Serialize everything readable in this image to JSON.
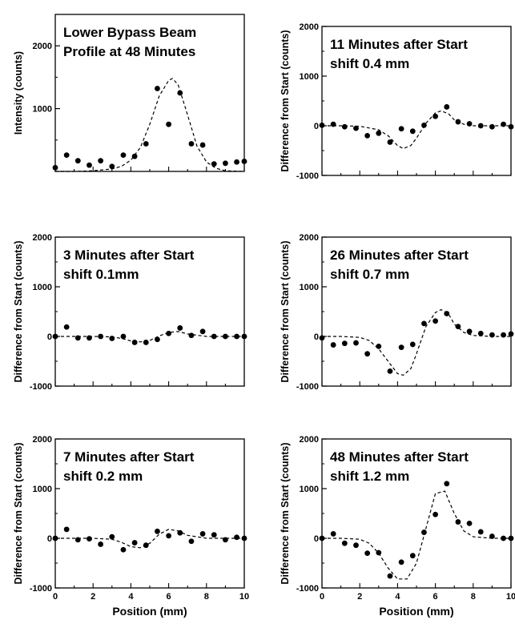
{
  "chart_data": [
    {
      "type": "scatter",
      "title": "Lower Bypass Beam",
      "subtitle": "Profile at 48 Minutes",
      "ylabel": "Intensity (counts)",
      "xlabel": "",
      "xlim": [
        0,
        10
      ],
      "ylim": [
        0,
        2500
      ],
      "yticks": [
        1000,
        2000
      ],
      "xticks": [],
      "x": [
        0,
        0.6,
        1.2,
        1.8,
        2.4,
        3.0,
        3.6,
        4.2,
        4.8,
        5.4,
        6.0,
        6.6,
        7.2,
        7.8,
        8.4,
        9.0,
        9.6,
        10.0
      ],
      "y": [
        60,
        260,
        170,
        100,
        170,
        80,
        260,
        240,
        440,
        1320,
        750,
        1250,
        440,
        420,
        120,
        130,
        150,
        160
      ],
      "fit": {
        "style": "dashed",
        "x": [
          0,
          1,
          2,
          3,
          3.5,
          4,
          4.5,
          5,
          5.5,
          6,
          6.2,
          6.5,
          7,
          7.5,
          8,
          8.5,
          9,
          10
        ],
        "y": [
          0,
          0,
          10,
          40,
          80,
          180,
          380,
          750,
          1200,
          1450,
          1480,
          1380,
          900,
          400,
          150,
          50,
          10,
          0
        ]
      }
    },
    {
      "type": "scatter",
      "title": "11 Minutes after Start",
      "subtitle": "shift 0.4 mm",
      "ylabel": "Difference from Start (counts)",
      "xlabel": "",
      "xlim": [
        0,
        10
      ],
      "ylim": [
        -1000,
        2000
      ],
      "yticks": [
        -1000,
        0,
        1000,
        2000
      ],
      "xticks": [],
      "x": [
        0,
        0.6,
        1.2,
        1.8,
        2.4,
        3.0,
        3.6,
        4.2,
        4.8,
        5.4,
        6.0,
        6.6,
        7.2,
        7.8,
        8.4,
        9.0,
        9.6,
        10.0
      ],
      "y": [
        10,
        30,
        -20,
        -50,
        -200,
        -150,
        -330,
        -60,
        -110,
        10,
        190,
        380,
        80,
        40,
        0,
        -20,
        30,
        -20
      ],
      "fit": {
        "style": "dashed",
        "x": [
          0,
          1,
          2,
          3,
          3.5,
          4,
          4.3,
          4.7,
          5,
          5.5,
          6,
          6.3,
          6.7,
          7,
          7.5,
          8,
          9,
          10
        ],
        "y": [
          0,
          0,
          -10,
          -80,
          -200,
          -400,
          -460,
          -400,
          -250,
          50,
          260,
          300,
          240,
          120,
          30,
          0,
          0,
          0
        ]
      }
    },
    {
      "type": "scatter",
      "title": "3 Minutes after Start",
      "subtitle": "shift 0.1mm",
      "ylabel": "Difference from Start (counts)",
      "xlabel": "",
      "xlim": [
        0,
        10
      ],
      "ylim": [
        -1000,
        2000
      ],
      "yticks": [
        -1000,
        0,
        1000,
        2000
      ],
      "xticks": [],
      "x": [
        0,
        0.6,
        1.2,
        1.8,
        2.4,
        3.0,
        3.6,
        4.2,
        4.8,
        5.4,
        6.0,
        6.6,
        7.2,
        7.8,
        8.4,
        9.0,
        9.6,
        10.0
      ],
      "y": [
        0,
        190,
        -30,
        -30,
        0,
        -40,
        0,
        -120,
        -120,
        -60,
        60,
        170,
        20,
        100,
        0,
        0,
        0,
        0
      ],
      "fit": {
        "style": "dashed",
        "x": [
          0,
          2,
          3,
          3.5,
          4,
          4.5,
          5,
          5.5,
          6,
          6.5,
          7,
          8,
          10
        ],
        "y": [
          0,
          0,
          -10,
          -40,
          -90,
          -110,
          -80,
          10,
          80,
          100,
          50,
          0,
          0
        ]
      }
    },
    {
      "type": "scatter",
      "title": "26 Minutes after Start",
      "subtitle": "shift 0.7 mm",
      "ylabel": "Difference from Start (counts)",
      "xlabel": "",
      "xlim": [
        0,
        10
      ],
      "ylim": [
        -1000,
        2000
      ],
      "yticks": [
        -1000,
        0,
        1000,
        2000
      ],
      "xticks": [],
      "x": [
        0,
        0.6,
        1.2,
        1.8,
        2.4,
        3.0,
        3.6,
        4.2,
        4.8,
        5.4,
        6.0,
        6.6,
        7.2,
        7.8,
        8.4,
        9.0,
        9.6,
        10.0
      ],
      "y": [
        -30,
        -170,
        -140,
        -130,
        -350,
        -200,
        -700,
        -220,
        -160,
        260,
        310,
        460,
        200,
        100,
        60,
        30,
        30,
        50
      ],
      "fit": {
        "style": "dashed",
        "x": [
          0,
          1,
          2,
          2.5,
          3,
          3.5,
          4,
          4.3,
          4.7,
          5,
          5.5,
          6,
          6.3,
          6.7,
          7,
          7.5,
          8,
          9,
          10
        ],
        "y": [
          0,
          0,
          -20,
          -80,
          -250,
          -500,
          -750,
          -780,
          -650,
          -350,
          200,
          480,
          540,
          450,
          250,
          80,
          20,
          0,
          0
        ]
      }
    },
    {
      "type": "scatter",
      "title": "7 Minutes after Start",
      "subtitle": "shift 0.2 mm",
      "ylabel": "Difference from Start (counts)",
      "xlabel": "Position (mm)",
      "xlim": [
        0,
        10
      ],
      "ylim": [
        -1000,
        2000
      ],
      "yticks": [
        -1000,
        0,
        1000,
        2000
      ],
      "xticks": [
        0,
        2,
        4,
        6,
        8,
        10
      ],
      "x": [
        0,
        0.6,
        1.2,
        1.8,
        2.4,
        3.0,
        3.6,
        4.2,
        4.8,
        5.4,
        6.0,
        6.6,
        7.2,
        7.8,
        8.4,
        9.0,
        9.6,
        10.0
      ],
      "y": [
        0,
        180,
        -30,
        -10,
        -120,
        30,
        -230,
        -90,
        -140,
        140,
        50,
        110,
        -60,
        90,
        70,
        -30,
        20,
        0
      ],
      "fit": {
        "style": "dashed",
        "x": [
          0,
          2,
          3,
          3.5,
          4,
          4.5,
          5,
          5.5,
          6,
          6.5,
          7,
          8,
          10
        ],
        "y": [
          0,
          0,
          -20,
          -80,
          -170,
          -190,
          -100,
          80,
          180,
          150,
          60,
          0,
          0
        ]
      }
    },
    {
      "type": "scatter",
      "title": "48 Minutes after Start",
      "subtitle": "shift 1.2 mm",
      "ylabel": "Difference from Start (counts)",
      "xlabel": "Position (mm)",
      "xlim": [
        0,
        10
      ],
      "ylim": [
        -1000,
        2000
      ],
      "yticks": [
        -1000,
        0,
        1000,
        2000
      ],
      "xticks": [
        0,
        2,
        4,
        6,
        8,
        10
      ],
      "x": [
        0,
        0.6,
        1.2,
        1.8,
        2.4,
        3.0,
        3.6,
        4.2,
        4.8,
        5.4,
        6.0,
        6.6,
        7.2,
        7.8,
        8.4,
        9.0,
        9.6,
        10.0
      ],
      "y": [
        0,
        90,
        -100,
        -140,
        -300,
        -290,
        -760,
        -480,
        -350,
        120,
        480,
        1100,
        330,
        300,
        130,
        40,
        0,
        0
      ],
      "fit": {
        "style": "dashed",
        "x": [
          0,
          1,
          2,
          2.5,
          3,
          3.5,
          4,
          4.5,
          5,
          5.5,
          6,
          6.5,
          7,
          7.5,
          8,
          9,
          10
        ],
        "y": [
          0,
          0,
          -20,
          -100,
          -300,
          -600,
          -820,
          -820,
          -500,
          200,
          900,
          950,
          500,
          150,
          30,
          0,
          0
        ]
      }
    }
  ]
}
